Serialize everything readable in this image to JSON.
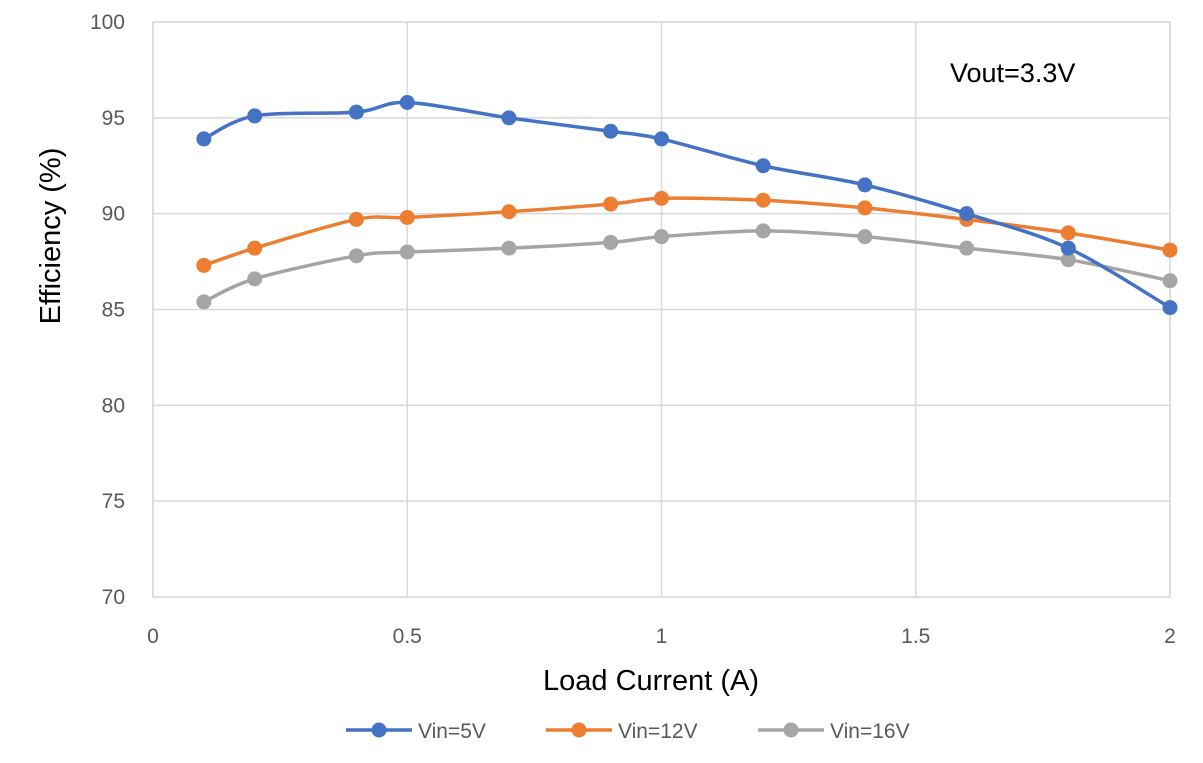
{
  "chart_data": {
    "type": "line",
    "title": "",
    "xlabel": "Load Current (A)",
    "ylabel": "Efficiency (%)",
    "xlim": [
      0,
      2
    ],
    "ylim": [
      70,
      100
    ],
    "xticks": [
      0,
      0.5,
      1,
      1.5,
      2
    ],
    "yticks": [
      70,
      75,
      80,
      85,
      90,
      95,
      100
    ],
    "xtick_labels": [
      "0",
      "0.5",
      "1",
      "1.5",
      "2"
    ],
    "ytick_labels": [
      "70",
      "75",
      "80",
      "85",
      "90",
      "95",
      "100"
    ],
    "grid": true,
    "legend_position": "bottom",
    "annotation": "Vout=3.3V",
    "x": [
      0.1,
      0.2,
      0.4,
      0.5,
      0.7,
      0.9,
      1.0,
      1.2,
      1.4,
      1.6,
      1.8,
      2.0
    ],
    "series": [
      {
        "name": "Vin=5V",
        "color": "#4472C4",
        "values": [
          93.9,
          95.1,
          95.3,
          95.8,
          95.0,
          94.3,
          93.9,
          92.5,
          91.5,
          90.0,
          88.2,
          85.1
        ]
      },
      {
        "name": "Vin=12V",
        "color": "#ED7D31",
        "values": [
          87.3,
          88.2,
          89.7,
          89.8,
          90.1,
          90.5,
          90.8,
          90.7,
          90.3,
          89.7,
          89.0,
          88.1
        ]
      },
      {
        "name": "Vin=16V",
        "color": "#A5A5A5",
        "values": [
          85.4,
          86.6,
          87.8,
          88.0,
          88.2,
          88.5,
          88.8,
          89.1,
          88.8,
          88.2,
          87.6,
          86.5
        ]
      }
    ]
  }
}
